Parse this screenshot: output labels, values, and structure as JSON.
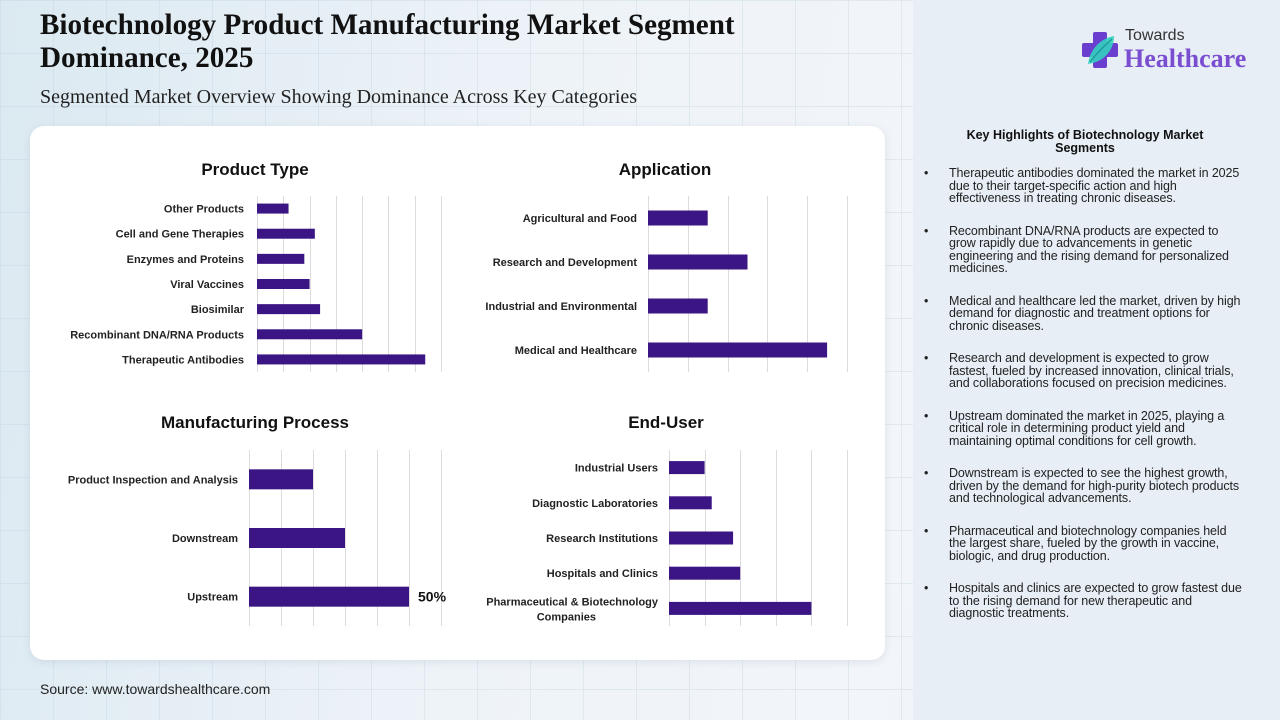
{
  "header": {
    "title": "Biotechnology Product Manufacturing Market Segment Dominance, 2025",
    "subtitle": "Segmented Market Overview Showing Dominance Across Key Categories"
  },
  "logo": {
    "line1": "Towards",
    "line2": "Healthcare",
    "brand_color": "#7b4dd1",
    "icon": "medical-cross-leaf-icon"
  },
  "colors": {
    "bar": "#3a1583",
    "panel_bg": "#e7eef6"
  },
  "chart_data": [
    {
      "type": "bar",
      "orientation": "horizontal",
      "title": "Product Type",
      "categories": [
        "Other Products",
        "Cell and Gene Therapies",
        "Enzymes and Proteins",
        "Viral Vaccines",
        "Biosimilar",
        "Recombinant DNA/RNA Products",
        "Therapeutic Antibodies"
      ],
      "values": [
        12,
        22,
        18,
        20,
        24,
        40,
        64
      ],
      "xlim": [
        0,
        70
      ],
      "grid_step": 10,
      "grid": true,
      "xlabel": "",
      "ylabel": "",
      "data_labels": {}
    },
    {
      "type": "bar",
      "orientation": "horizontal",
      "title": "Application",
      "categories": [
        "Agricultural and Food",
        "Research and Development",
        "Industrial and Environmental",
        "Medical and Healthcare"
      ],
      "values": [
        15,
        25,
        15,
        45
      ],
      "xlim": [
        0,
        50
      ],
      "grid_step": 10,
      "grid": true,
      "xlabel": "",
      "ylabel": "",
      "data_labels": {}
    },
    {
      "type": "bar",
      "orientation": "horizontal",
      "title": "Manufacturing Process",
      "categories": [
        "Product Inspection and Analysis",
        "Downstream",
        "Upstream"
      ],
      "values": [
        20,
        30,
        50
      ],
      "xlim": [
        0,
        60
      ],
      "grid_step": 10,
      "grid": true,
      "xlabel": "",
      "ylabel": "",
      "data_labels": {
        "Upstream": "50%"
      }
    },
    {
      "type": "bar",
      "orientation": "horizontal",
      "title": "End-User",
      "categories": [
        "Industrial Users",
        "Diagnostic Laboratories",
        "Research Institutions",
        "Hospitals and Clinics",
        "Pharmaceutical & Biotechnology Companies"
      ],
      "values": [
        10,
        12,
        18,
        20,
        40
      ],
      "xlim": [
        0,
        50
      ],
      "grid_step": 10,
      "grid": true,
      "xlabel": "",
      "ylabel": "",
      "data_labels": {}
    }
  ],
  "highlights": {
    "title": "Key Highlights of Biotechnology Market Segments",
    "bullet": "•",
    "items": [
      "Therapeutic antibodies dominated the market in 2025 due to their target-specific action and high effectiveness in treating chronic diseases.",
      "Recombinant DNA/RNA products are expected to grow rapidly due to advancements in genetic engineering and the rising demand for personalized medicines.",
      "Medical and healthcare led the market, driven by high demand for diagnostic and treatment options for chronic diseases.",
      "Research and development is expected to grow fastest, fueled by increased innovation, clinical trials, and collaborations focused on precision medicines.",
      "Upstream dominated the market in 2025, playing a critical role in determining product yield and maintaining optimal conditions for cell growth.",
      "Downstream is expected to see the highest growth, driven by the demand for high-purity biotech products and technological advancements.",
      "Pharmaceutical and biotechnology companies held the largest share, fueled by the growth in vaccine, biologic, and drug production.",
      "Hospitals and clinics are expected to grow fastest due to the rising demand for new therapeutic and diagnostic treatments."
    ]
  },
  "footer": {
    "source": "Source: www.towardshealthcare.com"
  }
}
